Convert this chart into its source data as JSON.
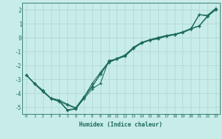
{
  "xlabel": "Humidex (Indice chaleur)",
  "ylabel": "",
  "bg_color": "#c8ece8",
  "grid_color": "#b0d8d4",
  "line_color": "#1a6b5a",
  "xlim": [
    -0.5,
    23.5
  ],
  "ylim": [
    -5.5,
    2.5
  ],
  "xticks": [
    0,
    1,
    2,
    3,
    4,
    5,
    6,
    7,
    8,
    9,
    10,
    11,
    12,
    13,
    14,
    15,
    16,
    17,
    18,
    19,
    20,
    21,
    22,
    23
  ],
  "yticks": [
    -5,
    -4,
    -3,
    -2,
    -1,
    0,
    1,
    2
  ],
  "lines": [
    [
      0,
      1,
      2,
      3,
      4,
      5,
      6,
      7,
      8,
      9,
      10,
      11,
      12,
      13,
      14,
      15,
      16,
      17,
      18,
      19,
      20,
      21,
      22,
      23
    ],
    [
      -2.7,
      -3.3,
      -3.8,
      -4.4,
      -4.55,
      -5.2,
      -5.1,
      -4.3,
      -3.3,
      -2.5,
      -1.75,
      -1.5,
      -1.25,
      -0.7,
      -0.35,
      -0.2,
      -0.1,
      0.1,
      0.2,
      0.35,
      0.6,
      1.65,
      1.6,
      2.1
    ],
    [
      -2.7,
      -3.3,
      -3.85,
      -4.35,
      -4.5,
      -4.8,
      -5.05,
      -4.25,
      -3.55,
      -2.6,
      -1.8,
      -1.5,
      -1.3,
      -0.75,
      -0.35,
      -0.15,
      0.0,
      0.15,
      0.25,
      0.4,
      0.65,
      0.85,
      1.55,
      2.0
    ],
    [
      -2.7,
      -3.35,
      -3.9,
      -4.4,
      -4.6,
      -5.25,
      -5.15,
      -4.4,
      -3.7,
      -3.3,
      -1.65,
      -1.55,
      -1.35,
      -0.8,
      -0.4,
      -0.2,
      -0.05,
      0.1,
      0.2,
      0.4,
      0.65,
      1.65,
      1.55,
      2.05
    ],
    [
      -2.7,
      -3.3,
      -3.8,
      -4.4,
      -4.6,
      -4.85,
      -5.1,
      -4.3,
      -3.5,
      -2.65,
      -1.8,
      -1.55,
      -1.3,
      -0.75,
      -0.4,
      -0.18,
      0.0,
      0.12,
      0.22,
      0.38,
      0.62,
      0.82,
      1.5,
      2.0
    ]
  ]
}
